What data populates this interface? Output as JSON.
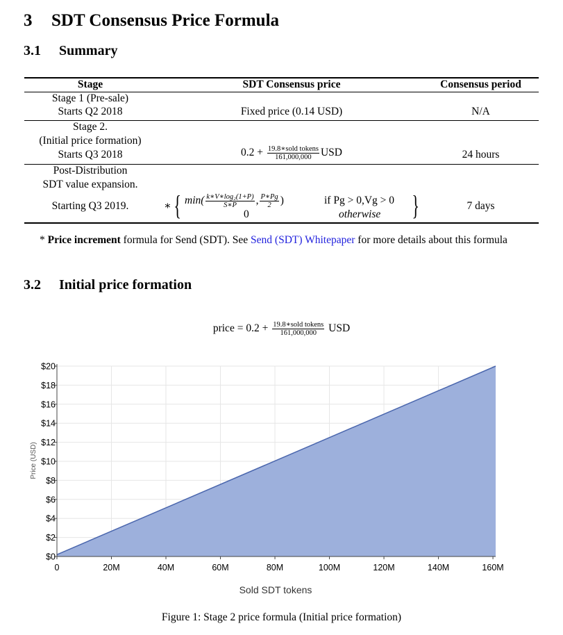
{
  "section": {
    "number": "3",
    "title": "SDT Consensus Price Formula"
  },
  "subsection1": {
    "number": "3.1",
    "title": "Summary"
  },
  "table": {
    "headers": [
      "Stage",
      "SDT Consensus price",
      "Consensus period"
    ],
    "row1": {
      "stage_line1": "Stage 1 (Pre-sale)",
      "stage_line2": "Starts Q2 2018",
      "price": "Fixed price (0.14 USD)",
      "period": "N/A"
    },
    "row2": {
      "stage_line1": "Stage 2.",
      "stage_line2": "(Initial price formation)",
      "stage_line3": "Starts Q3 2018",
      "price_prefix": "0.2 +",
      "frac_num": "19.8∗sold tokens",
      "frac_den": "161,000,000",
      "price_suffix": "USD",
      "period": "24 hours"
    },
    "row3": {
      "stage_line1": "Post-Distribution",
      "stage_line2": "SDT value expansion.",
      "stage_line3": "Starting Q3 2019.",
      "star": "∗",
      "min_text": "min(",
      "f1_num": "k∗V∗log₂(1+P)",
      "f1_den": "S∗P",
      "comma": ",",
      "f2_num": "P∗Pg",
      "f2_den": "2",
      "close": ")",
      "cond1": "if Pg > 0,Vg > 0",
      "case2_value": "0",
      "cond2": "otherwise",
      "period": "7 days"
    }
  },
  "note": {
    "star": "*",
    "bold": "Price increment",
    "text1": " formula for Send (SDT). See ",
    "link": "Send (SDT) Whitepaper",
    "text2": " for more details about this formula"
  },
  "subsection2": {
    "number": "3.2",
    "title": "Initial price formation"
  },
  "figure_formula": {
    "prefix": "price = 0.2 +",
    "num": "19.8∗sold tokens",
    "den": "161,000,000",
    "suffix": "USD"
  },
  "caption": "Figure 1:   Stage 2 price formula (Initial price formation)",
  "chart_data": {
    "type": "area",
    "title": "",
    "xlabel": "Sold SDT tokens",
    "ylabel": "Price (USD)",
    "x": [
      0,
      161000000
    ],
    "y": [
      0.2,
      20.0
    ],
    "xlim": [
      0,
      161000000
    ],
    "ylim": [
      0,
      20
    ],
    "x_ticks": [
      0,
      20000000,
      40000000,
      60000000,
      80000000,
      100000000,
      120000000,
      140000000,
      160000000
    ],
    "x_tick_labels": [
      "0",
      "20M",
      "40M",
      "60M",
      "80M",
      "100M",
      "120M",
      "140M",
      "160M"
    ],
    "y_ticks": [
      0,
      2,
      4,
      6,
      8,
      10,
      12,
      14,
      16,
      18,
      20
    ],
    "y_tick_labels": [
      "$0",
      "$2",
      "$4",
      "$6",
      "$8",
      "$10",
      "$12",
      "$14",
      "$16",
      "$18",
      "$20"
    ],
    "grid": true,
    "fill_color": "#9db0dc",
    "line_color": "#4a66ad"
  }
}
